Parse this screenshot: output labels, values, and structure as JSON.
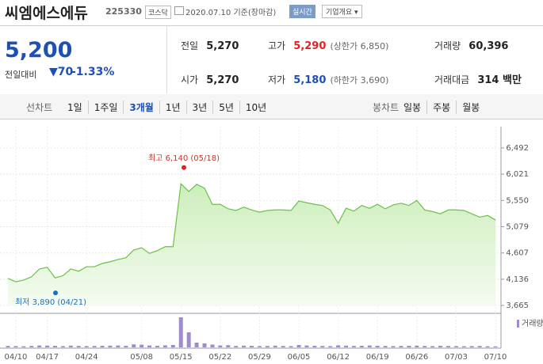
{
  "header": {
    "name": "씨엠에스에듀",
    "code": "225330",
    "market": "코스닥",
    "date": "2020.07.10",
    "date_note": "기준(장마감)",
    "realtime": "실시간",
    "company_info": "기업개요"
  },
  "quote": {
    "price": "5,200",
    "change_label": "전일대비",
    "change": "70",
    "change_pct": "-1.33%"
  },
  "stats": [
    {
      "label": "전일",
      "value": "5,270"
    },
    {
      "label": "고가",
      "value": "5,290",
      "note": "(상한가 6,850)"
    },
    {
      "label": "거래량",
      "value": "60,396"
    },
    {
      "label": "시가",
      "value": "5,270"
    },
    {
      "label": "저가",
      "value": "5,180",
      "note": "(하한가 3,690)"
    },
    {
      "label": "거래대금",
      "value": "314 백만"
    }
  ],
  "periods": {
    "label": "선차트",
    "items": [
      "1일",
      "1주일",
      "3개월",
      "1년",
      "3년",
      "5년",
      "10년"
    ]
  },
  "candles": {
    "label": "봉차트",
    "items": [
      "일봉",
      "주봉",
      "월봉"
    ]
  },
  "chart_data": {
    "type": "area",
    "categories": [
      null,
      "04/10",
      null,
      null,
      null,
      "04/17",
      null,
      null,
      null,
      null,
      "04/24",
      null,
      null,
      null,
      null,
      null,
      null,
      "05/08",
      null,
      null,
      null,
      null,
      "05/15",
      null,
      null,
      null,
      null,
      "05/22",
      null,
      null,
      null,
      null,
      "05/29",
      null,
      null,
      null,
      null,
      "06/05",
      null,
      null,
      null,
      null,
      "06/12",
      null,
      null,
      null,
      null,
      "06/19",
      null,
      null,
      null,
      null,
      "06/26",
      null,
      null,
      null,
      null,
      "07/03",
      null,
      null,
      null,
      null,
      "07/10"
    ],
    "series": [
      {
        "name": "종가",
        "color": "#6cc04a",
        "values": [
          4150,
          4090,
          4120,
          4180,
          4320,
          4350,
          4160,
          4200,
          4320,
          4280,
          4360,
          4360,
          4420,
          4450,
          4490,
          4520,
          4660,
          4700,
          4600,
          4650,
          4720,
          4720,
          5850,
          5710,
          5840,
          5770,
          5480,
          5480,
          5400,
          5370,
          5430,
          5380,
          5340,
          5370,
          5380,
          5380,
          5370,
          5540,
          5510,
          5480,
          5460,
          5380,
          5140,
          5410,
          5360,
          5460,
          5410,
          5480,
          5400,
          5470,
          5500,
          5460,
          5550,
          5380,
          5350,
          5310,
          5380,
          5380,
          5370,
          5310,
          5250,
          5280,
          5200
        ]
      }
    ],
    "volume": {
      "name": "거래량",
      "color": "#a08cc8",
      "ylim": [
        0,
        2000000
      ],
      "values": [
        90000,
        80000,
        70000,
        90000,
        120000,
        110000,
        100000,
        80000,
        110000,
        90000,
        80000,
        90000,
        100000,
        110000,
        120000,
        100000,
        190000,
        170000,
        120000,
        100000,
        130000,
        150000,
        1900000,
        950000,
        300000,
        250000,
        180000,
        120000,
        140000,
        90000,
        110000,
        100000,
        80000,
        90000,
        110000,
        90000,
        80000,
        150000,
        120000,
        100000,
        90000,
        80000,
        130000,
        110000,
        90000,
        100000,
        120000,
        100000,
        90000,
        80000,
        90000,
        100000,
        110000,
        90000,
        80000,
        100000,
        90000,
        80000,
        70000,
        80000,
        90000,
        70000,
        60396
      ]
    },
    "ylim": [
      3665,
      6492
    ],
    "yticks": [
      {
        "value": 3665,
        "label": "3,665"
      },
      {
        "value": 4136,
        "label": "4,136"
      },
      {
        "value": 4607,
        "label": "4,607"
      },
      {
        "value": 5079,
        "label": "5,079"
      },
      {
        "value": 5550,
        "label": "5,550"
      },
      {
        "value": 6021,
        "label": "6,021"
      },
      {
        "value": 6492,
        "label": "6,492"
      }
    ],
    "annotations": [
      {
        "text": "최고 6,140 (05/18)",
        "value": 6140,
        "color": "#e52020"
      },
      {
        "text": "최저 3,890 (04/21)",
        "value": 3890,
        "color": "#1e6ec8"
      }
    ],
    "grid": true
  }
}
